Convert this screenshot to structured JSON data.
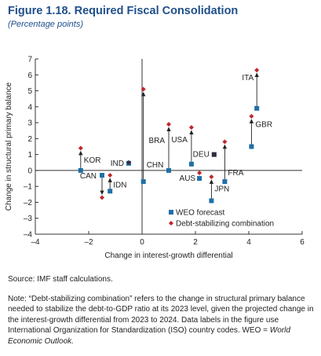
{
  "figure": {
    "title": "Figure 1.18.  Required Fiscal Consolidation",
    "subtitle": "(Percentage points)"
  },
  "chart_data": {
    "type": "scatter",
    "xlabel": "Change in interest-growth differential",
    "ylabel": "Change in structural primary balance",
    "xlim": [
      -4,
      6
    ],
    "ylim": [
      -4,
      7
    ],
    "xticks": [
      -4,
      -2,
      0,
      2,
      4,
      6
    ],
    "yticks": [
      -4,
      -3,
      -2,
      -1,
      0,
      1,
      2,
      3,
      4,
      5,
      6,
      7
    ],
    "grid": false,
    "legend_position": "bottom-right",
    "series": [
      {
        "name": "WEO forecast",
        "marker": "square",
        "color": "#1f6fa8",
        "points": [
          {
            "label": "KOR",
            "x": -2.3,
            "y": 0.0
          },
          {
            "label": "CAN",
            "x": -1.5,
            "y": -0.3
          },
          {
            "label": "IDN",
            "x": -1.2,
            "y": -1.3
          },
          {
            "label": "IND",
            "x": -0.5,
            "y": 0.45
          },
          {
            "label": "CHN",
            "x": 0.05,
            "y": -0.7
          },
          {
            "label": "BRA",
            "x": 1.0,
            "y": 0.0
          },
          {
            "label": "USA",
            "x": 1.85,
            "y": 0.4
          },
          {
            "label": "DEU",
            "x": 2.7,
            "y": 1.0
          },
          {
            "label": "AUS",
            "x": 2.15,
            "y": -0.5
          },
          {
            "label": "JPN",
            "x": 2.6,
            "y": -1.9
          },
          {
            "label": "FRA",
            "x": 3.1,
            "y": -0.7
          },
          {
            "label": "GBR",
            "x": 4.1,
            "y": 1.5
          },
          {
            "label": "ITA",
            "x": 4.3,
            "y": 3.9
          }
        ]
      },
      {
        "name": "Debt-stabilizing combination",
        "marker": "diamond",
        "color": "#c0262d",
        "points": [
          {
            "label": "KOR",
            "x": -2.3,
            "y": 1.4
          },
          {
            "label": "CAN",
            "x": -1.5,
            "y": -1.7
          },
          {
            "label": "IDN",
            "x": -1.2,
            "y": -0.3
          },
          {
            "label": "IND",
            "x": -0.5,
            "y": 0.5
          },
          {
            "label": "CHN",
            "x": 0.05,
            "y": 5.1
          },
          {
            "label": "BRA",
            "x": 1.0,
            "y": 2.9
          },
          {
            "label": "USA",
            "x": 1.85,
            "y": 2.7
          },
          {
            "label": "DEU",
            "x": 2.7,
            "y": 1.0
          },
          {
            "label": "AUS",
            "x": 2.15,
            "y": -0.15
          },
          {
            "label": "JPN",
            "x": 2.6,
            "y": -0.4
          },
          {
            "label": "FRA",
            "x": 3.1,
            "y": 1.8
          },
          {
            "label": "GBR",
            "x": 4.1,
            "y": 3.4
          },
          {
            "label": "ITA",
            "x": 4.3,
            "y": 6.3
          }
        ]
      }
    ]
  },
  "source": "Source: IMF staff calculations.",
  "note": {
    "text": "Note: “Debt-stabilizing combination” refers to the change in structural primary balance needed to stabilize the debt-to-GDP ratio at its 2023 level, given the projected change in the interest-growth differential from 2023 to 2024. Data labels in the figure use International Organization for Standardization (ISO) country codes. WEO = ",
    "italic": "World Economic Outlook."
  }
}
